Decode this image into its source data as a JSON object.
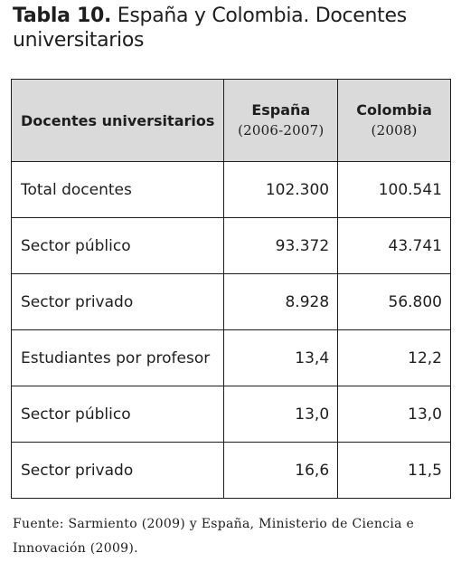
{
  "title": {
    "label": "Tabla 10.",
    "text": "España y Colombia. Docentes universitarios"
  },
  "table": {
    "header": {
      "row_label": "Docentes universitarios",
      "columns": [
        {
          "name": "España",
          "period": "(2006-2007)"
        },
        {
          "name": "Colombia",
          "period": "(2008)"
        }
      ]
    },
    "rows": [
      {
        "label": "Total docentes",
        "values": [
          "102.300",
          "100.541"
        ]
      },
      {
        "label": "Sector público",
        "values": [
          "93.372",
          "43.741"
        ]
      },
      {
        "label": "Sector privado",
        "values": [
          "8.928",
          "56.800"
        ]
      },
      {
        "label": "Estudiantes por profesor",
        "values": [
          "13,4",
          "12,2"
        ]
      },
      {
        "label": "Sector público",
        "values": [
          "13,0",
          "13,0"
        ]
      },
      {
        "label": "Sector privado",
        "values": [
          "16,6",
          "11,5"
        ]
      }
    ],
    "colors": {
      "header_background": "#dadada",
      "border": "#1e1e1e",
      "text": "#1e1e1e"
    }
  },
  "source": "Fuente: Sarmiento (2009) y España, Ministerio de Ciencia e Innovación (2009)."
}
